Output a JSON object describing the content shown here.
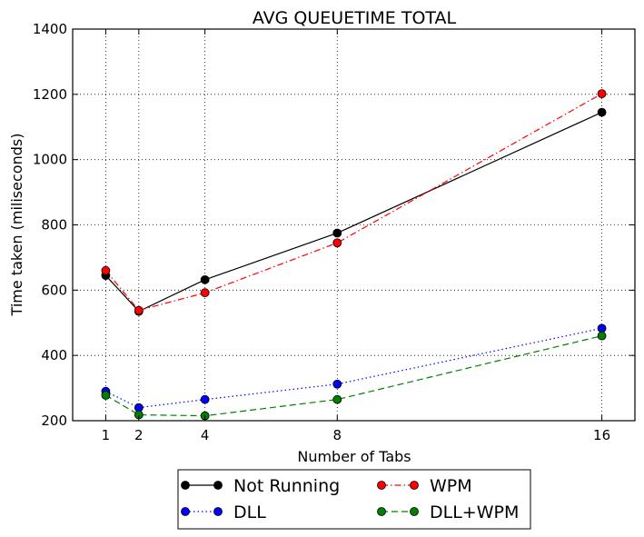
{
  "chart_data": {
    "type": "line",
    "title": "AVG QUEUETIME TOTAL",
    "xlabel": "Number of Tabs",
    "ylabel": "Time taken (miliseconds)",
    "x": [
      1,
      2,
      4,
      8,
      16
    ],
    "xticks": [
      1,
      2,
      4,
      8,
      16
    ],
    "xlim": [
      0,
      17
    ],
    "ylim": [
      200,
      1400
    ],
    "yticks": [
      200,
      400,
      600,
      800,
      1000,
      1200,
      1400
    ],
    "grid": true,
    "legend_position": "bottom-center-outside",
    "series": [
      {
        "name": "Not Running",
        "values": [
          645,
          535,
          632,
          775,
          1145
        ],
        "color": "#000000",
        "linestyle": "solid",
        "marker": "circle"
      },
      {
        "name": "DLL",
        "values": [
          290,
          240,
          265,
          312,
          483
        ],
        "color": "#0000ff",
        "linestyle": "dotted",
        "marker": "circle"
      },
      {
        "name": "WPM",
        "values": [
          660,
          538,
          592,
          745,
          1202
        ],
        "color": "#ff0000",
        "linestyle": "dashdot",
        "marker": "circle"
      },
      {
        "name": "DLL+WPM",
        "values": [
          278,
          218,
          215,
          265,
          460
        ],
        "color": "#008000",
        "linestyle": "dashed",
        "marker": "circle"
      }
    ]
  }
}
